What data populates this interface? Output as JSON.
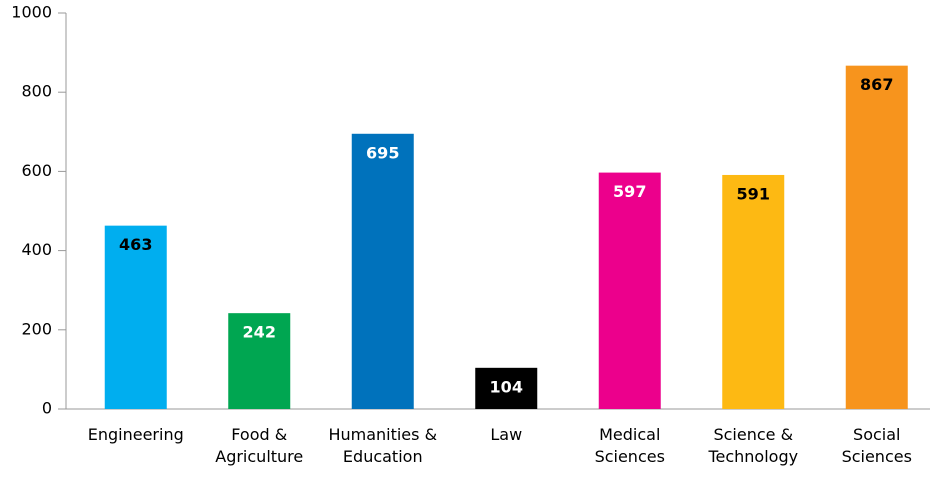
{
  "chart_data": {
    "type": "bar",
    "categories": [
      "Engineering",
      "Food & Agriculture",
      "Humanities & Education",
      "Law",
      "Medical Sciences",
      "Science & Technology",
      "Social Sciences"
    ],
    "values": [
      463,
      242,
      695,
      104,
      597,
      591,
      867
    ],
    "colors": [
      "#00aeef",
      "#00a651",
      "#0072bc",
      "#000000",
      "#ec008c",
      "#fdb913",
      "#f7941d"
    ],
    "label_colors": [
      "#000000",
      "#ffffff",
      "#ffffff",
      "#ffffff",
      "#ffffff",
      "#000000",
      "#000000"
    ],
    "ylim": [
      0,
      1000
    ],
    "yticks": [
      0,
      200,
      400,
      600,
      800,
      1000
    ],
    "grid": false
  }
}
